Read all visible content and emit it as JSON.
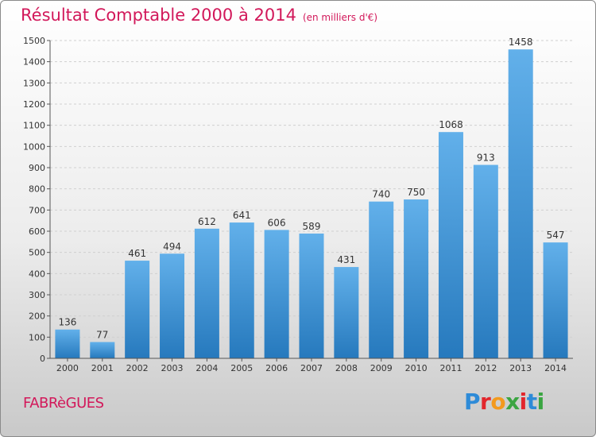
{
  "title": "Résultat Comptable 2000 à 2014",
  "subtitle": "(en milliers d'€)",
  "commune": "FABRèGUES",
  "logo": {
    "text": "Proxiti",
    "letter_colors": [
      "#2e8bd8",
      "#e2262c",
      "#f39a1e",
      "#3aa541",
      "#e2262c",
      "#2e8bd8",
      "#3aa541"
    ]
  },
  "colors": {
    "title": "#d2185a",
    "bar_top": "#62b0ea",
    "bar_bottom": "#2679bd",
    "grid": "#d0d0d0",
    "axis": "#555555",
    "text": "#333333"
  },
  "chart_data": {
    "type": "bar",
    "title": "Résultat Comptable 2000 à 2014",
    "subtitle": "(en milliers d'€)",
    "categories": [
      "2000",
      "2001",
      "2002",
      "2003",
      "2004",
      "2005",
      "2006",
      "2007",
      "2008",
      "2009",
      "2010",
      "2011",
      "2012",
      "2013",
      "2014"
    ],
    "values": [
      136,
      77,
      461,
      494,
      612,
      641,
      606,
      589,
      431,
      740,
      750,
      1068,
      913,
      1458,
      547
    ],
    "data_labels": [
      "136",
      "77",
      "461",
      "494",
      "612",
      "641",
      "606",
      "589",
      "431",
      "740",
      "750",
      "1068",
      "913",
      "1458",
      "547"
    ],
    "ylim": [
      0,
      1500
    ],
    "yticks": [
      0,
      100,
      200,
      300,
      400,
      500,
      600,
      700,
      800,
      900,
      1000,
      1100,
      1200,
      1300,
      1400,
      1500
    ],
    "grid": true,
    "xlabel": "",
    "ylabel": ""
  }
}
